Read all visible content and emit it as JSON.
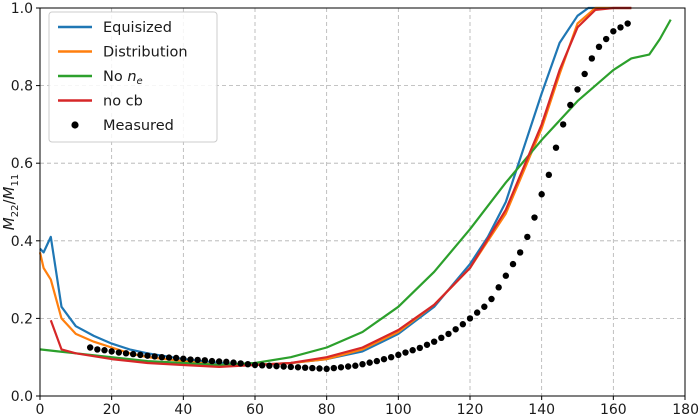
{
  "chart_data": {
    "type": "line",
    "title": "",
    "xlabel": "",
    "ylabel": "M_22/M_11",
    "xlim": [
      0,
      180
    ],
    "ylim": [
      0,
      1.0
    ],
    "grid": true,
    "legend_position": "top-left",
    "x_ticks": [
      "0",
      "20",
      "40",
      "60",
      "80",
      "100",
      "120",
      "140",
      "160",
      "180"
    ],
    "y_ticks": [
      "0.0",
      "0.2",
      "0.4",
      "0.6",
      "0.8",
      "1.0"
    ],
    "series": [
      {
        "name": "Equisized",
        "color": "#1f77b4",
        "style": "line",
        "x": [
          0,
          1,
          3,
          6,
          10,
          15,
          20,
          25,
          30,
          40,
          50,
          60,
          70,
          80,
          90,
          100,
          110,
          120,
          125,
          130,
          135,
          140,
          145,
          150,
          153,
          156,
          160,
          165
        ],
        "y": [
          0.38,
          0.37,
          0.41,
          0.23,
          0.18,
          0.155,
          0.135,
          0.12,
          0.11,
          0.095,
          0.085,
          0.08,
          0.085,
          0.095,
          0.115,
          0.16,
          0.23,
          0.34,
          0.41,
          0.5,
          0.64,
          0.78,
          0.91,
          0.98,
          1.0,
          1.0,
          1.0,
          1.0
        ]
      },
      {
        "name": "Distribution",
        "color": "#ff7f0e",
        "style": "line",
        "x": [
          0,
          1,
          3,
          6,
          10,
          15,
          20,
          25,
          30,
          40,
          50,
          60,
          70,
          80,
          90,
          100,
          110,
          120,
          130,
          140,
          145,
          150,
          155,
          160,
          165
        ],
        "y": [
          0.37,
          0.33,
          0.3,
          0.2,
          0.16,
          0.14,
          0.125,
          0.11,
          0.1,
          0.09,
          0.08,
          0.08,
          0.085,
          0.095,
          0.12,
          0.165,
          0.235,
          0.33,
          0.47,
          0.69,
          0.83,
          0.96,
          1.0,
          1.0,
          1.0
        ]
      },
      {
        "name": "No n_e",
        "color": "#2ca02c",
        "style": "line",
        "x": [
          0,
          5,
          10,
          20,
          30,
          40,
          50,
          60,
          70,
          80,
          90,
          100,
          110,
          120,
          130,
          140,
          150,
          160,
          165,
          170,
          173,
          176
        ],
        "y": [
          0.12,
          0.115,
          0.11,
          0.1,
          0.09,
          0.085,
          0.08,
          0.085,
          0.1,
          0.125,
          0.165,
          0.23,
          0.32,
          0.43,
          0.55,
          0.66,
          0.76,
          0.84,
          0.87,
          0.88,
          0.92,
          0.97
        ]
      },
      {
        "name": "no cb",
        "color": "#d62728",
        "style": "line",
        "x": [
          3,
          6,
          10,
          20,
          30,
          40,
          50,
          60,
          70,
          80,
          90,
          100,
          110,
          120,
          130,
          140,
          145,
          150,
          155,
          160,
          165
        ],
        "y": [
          0.195,
          0.12,
          0.11,
          0.095,
          0.085,
          0.08,
          0.075,
          0.08,
          0.085,
          0.1,
          0.125,
          0.17,
          0.235,
          0.33,
          0.48,
          0.7,
          0.84,
          0.95,
          0.995,
          1.0,
          1.0
        ]
      },
      {
        "name": "Measured",
        "color": "#000000",
        "style": "scatter",
        "x": [
          14,
          16,
          18,
          20,
          22,
          24,
          26,
          28,
          30,
          32,
          34,
          36,
          38,
          40,
          42,
          44,
          46,
          48,
          50,
          52,
          54,
          56,
          58,
          60,
          62,
          64,
          66,
          68,
          70,
          72,
          74,
          76,
          78,
          80,
          82,
          84,
          86,
          88,
          90,
          92,
          94,
          96,
          98,
          100,
          102,
          104,
          106,
          108,
          110,
          112,
          114,
          116,
          118,
          120,
          122,
          124,
          126,
          128,
          130,
          132,
          134,
          136,
          138,
          140,
          142,
          144,
          146,
          148,
          150,
          152,
          154,
          156,
          158,
          160,
          162,
          164
        ],
        "y": [
          0.125,
          0.12,
          0.118,
          0.115,
          0.112,
          0.11,
          0.108,
          0.106,
          0.104,
          0.102,
          0.1,
          0.099,
          0.098,
          0.096,
          0.094,
          0.093,
          0.092,
          0.09,
          0.089,
          0.088,
          0.086,
          0.084,
          0.082,
          0.08,
          0.079,
          0.078,
          0.077,
          0.076,
          0.075,
          0.074,
          0.073,
          0.072,
          0.071,
          0.07,
          0.072,
          0.074,
          0.076,
          0.078,
          0.082,
          0.086,
          0.09,
          0.095,
          0.1,
          0.106,
          0.112,
          0.118,
          0.124,
          0.132,
          0.14,
          0.15,
          0.16,
          0.172,
          0.185,
          0.2,
          0.215,
          0.23,
          0.25,
          0.28,
          0.31,
          0.34,
          0.37,
          0.41,
          0.46,
          0.52,
          0.57,
          0.64,
          0.7,
          0.75,
          0.79,
          0.83,
          0.87,
          0.9,
          0.92,
          0.94,
          0.95,
          0.96
        ]
      }
    ]
  }
}
